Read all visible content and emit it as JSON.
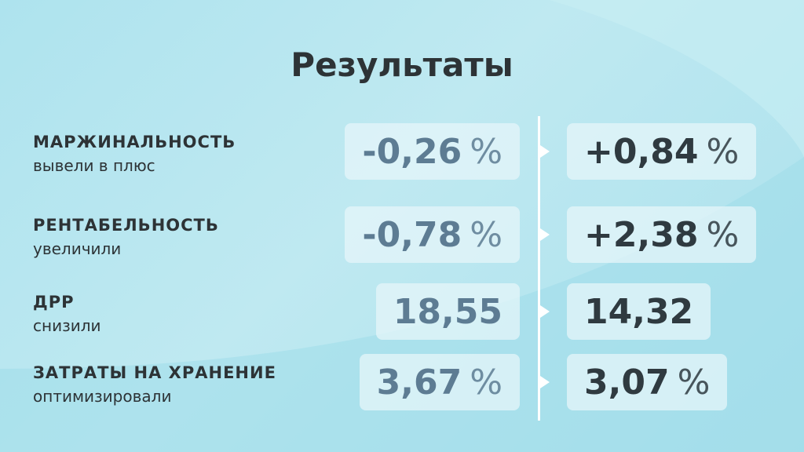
{
  "title": "Результаты",
  "rows": [
    {
      "label": "МАРЖИНАЛЬНОСТЬ",
      "note": "вывели в плюс",
      "before": {
        "value": "-0,26",
        "unit": "%"
      },
      "after": {
        "value": "+0,84",
        "unit": "%"
      }
    },
    {
      "label": "РЕНТАБЕЛЬНОСТЬ",
      "note": "увеличили",
      "before": {
        "value": "-0,78",
        "unit": "%"
      },
      "after": {
        "value": "+2,38",
        "unit": "%"
      }
    },
    {
      "label": "ДРР",
      "note": "снизили",
      "before": {
        "value": "18,55"
      },
      "after": {
        "value": "14,32"
      }
    },
    {
      "label": "ЗАТРАТЫ НА ХРАНЕНИЕ",
      "note": "оптимизировали",
      "before": {
        "value": "3,67",
        "unit": "%"
      },
      "after": {
        "value": "3,07",
        "unit": "%"
      }
    }
  ]
}
